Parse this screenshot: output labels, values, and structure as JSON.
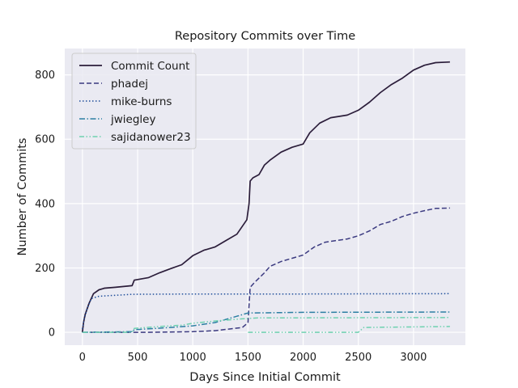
{
  "chart_data": {
    "type": "line",
    "title": "Repository Commits over Time",
    "xlabel": "Days Since Initial Commit",
    "ylabel": "Number of Commits",
    "xlim": [
      -160,
      3470
    ],
    "ylim": [
      -40,
      882
    ],
    "xticks": [
      0,
      500,
      1000,
      1500,
      2000,
      2500,
      3000
    ],
    "yticks": [
      0,
      200,
      400,
      600,
      800
    ],
    "grid": true,
    "background": "#eaeaf2",
    "legend_position": "top-left",
    "series": [
      {
        "name": "Commit Count",
        "color": "#2b1d3a",
        "style": "solid",
        "points": [
          [
            0,
            0
          ],
          [
            10,
            30
          ],
          [
            25,
            55
          ],
          [
            60,
            90
          ],
          [
            100,
            120
          ],
          [
            150,
            132
          ],
          [
            200,
            137
          ],
          [
            300,
            140
          ],
          [
            450,
            145
          ],
          [
            470,
            162
          ],
          [
            600,
            170
          ],
          [
            700,
            185
          ],
          [
            800,
            198
          ],
          [
            900,
            210
          ],
          [
            1000,
            238
          ],
          [
            1100,
            255
          ],
          [
            1200,
            265
          ],
          [
            1300,
            285
          ],
          [
            1400,
            305
          ],
          [
            1490,
            350
          ],
          [
            1510,
            400
          ],
          [
            1520,
            470
          ],
          [
            1545,
            480
          ],
          [
            1600,
            490
          ],
          [
            1650,
            520
          ],
          [
            1700,
            535
          ],
          [
            1800,
            560
          ],
          [
            1900,
            575
          ],
          [
            2000,
            585
          ],
          [
            2060,
            620
          ],
          [
            2150,
            650
          ],
          [
            2250,
            667
          ],
          [
            2400,
            675
          ],
          [
            2500,
            690
          ],
          [
            2600,
            715
          ],
          [
            2700,
            745
          ],
          [
            2800,
            770
          ],
          [
            2900,
            790
          ],
          [
            3000,
            815
          ],
          [
            3100,
            830
          ],
          [
            3200,
            838
          ],
          [
            3330,
            840
          ]
        ]
      },
      {
        "name": "phadej",
        "color": "#3b3a80",
        "style": "dashed",
        "points": [
          [
            0,
            0
          ],
          [
            100,
            0
          ],
          [
            600,
            0
          ],
          [
            1000,
            2
          ],
          [
            1200,
            5
          ],
          [
            1450,
            15
          ],
          [
            1500,
            30
          ],
          [
            1520,
            140
          ],
          [
            1560,
            155
          ],
          [
            1650,
            185
          ],
          [
            1700,
            205
          ],
          [
            1800,
            220
          ],
          [
            1900,
            230
          ],
          [
            2000,
            240
          ],
          [
            2100,
            265
          ],
          [
            2200,
            280
          ],
          [
            2300,
            285
          ],
          [
            2400,
            290
          ],
          [
            2500,
            300
          ],
          [
            2600,
            315
          ],
          [
            2700,
            335
          ],
          [
            2800,
            345
          ],
          [
            2900,
            360
          ],
          [
            3000,
            370
          ],
          [
            3100,
            378
          ],
          [
            3200,
            385
          ],
          [
            3330,
            386
          ]
        ]
      },
      {
        "name": "mike-burns",
        "color": "#1e4d9a",
        "style": "dotted",
        "points": [
          [
            0,
            10
          ],
          [
            15,
            40
          ],
          [
            40,
            70
          ],
          [
            80,
            105
          ],
          [
            150,
            112
          ],
          [
            300,
            115
          ],
          [
            450,
            118
          ],
          [
            1000,
            119
          ],
          [
            2000,
            119
          ],
          [
            3330,
            120
          ]
        ]
      },
      {
        "name": "jwiegley",
        "color": "#2c7fa3",
        "style": "dashdot",
        "points": [
          [
            0,
            0
          ],
          [
            450,
            2
          ],
          [
            470,
            8
          ],
          [
            800,
            15
          ],
          [
            1000,
            20
          ],
          [
            1200,
            30
          ],
          [
            1400,
            50
          ],
          [
            1500,
            60
          ],
          [
            2000,
            62
          ],
          [
            3330,
            63
          ]
        ]
      },
      {
        "name": "sajidanower23",
        "color": "#6fd1b0",
        "style": "dashdotdot",
        "points": [
          [
            0,
            0
          ],
          [
            450,
            0
          ],
          [
            470,
            12
          ],
          [
            700,
            18
          ],
          [
            900,
            22
          ],
          [
            1000,
            28
          ],
          [
            1200,
            35
          ],
          [
            1450,
            42
          ],
          [
            1600,
            45
          ],
          [
            2000,
            45
          ],
          [
            3330,
            46
          ],
          [
            1500,
            0
          ],
          [
            2500,
            0
          ],
          [
            2550,
            15
          ],
          [
            3330,
            18
          ]
        ]
      }
    ]
  }
}
